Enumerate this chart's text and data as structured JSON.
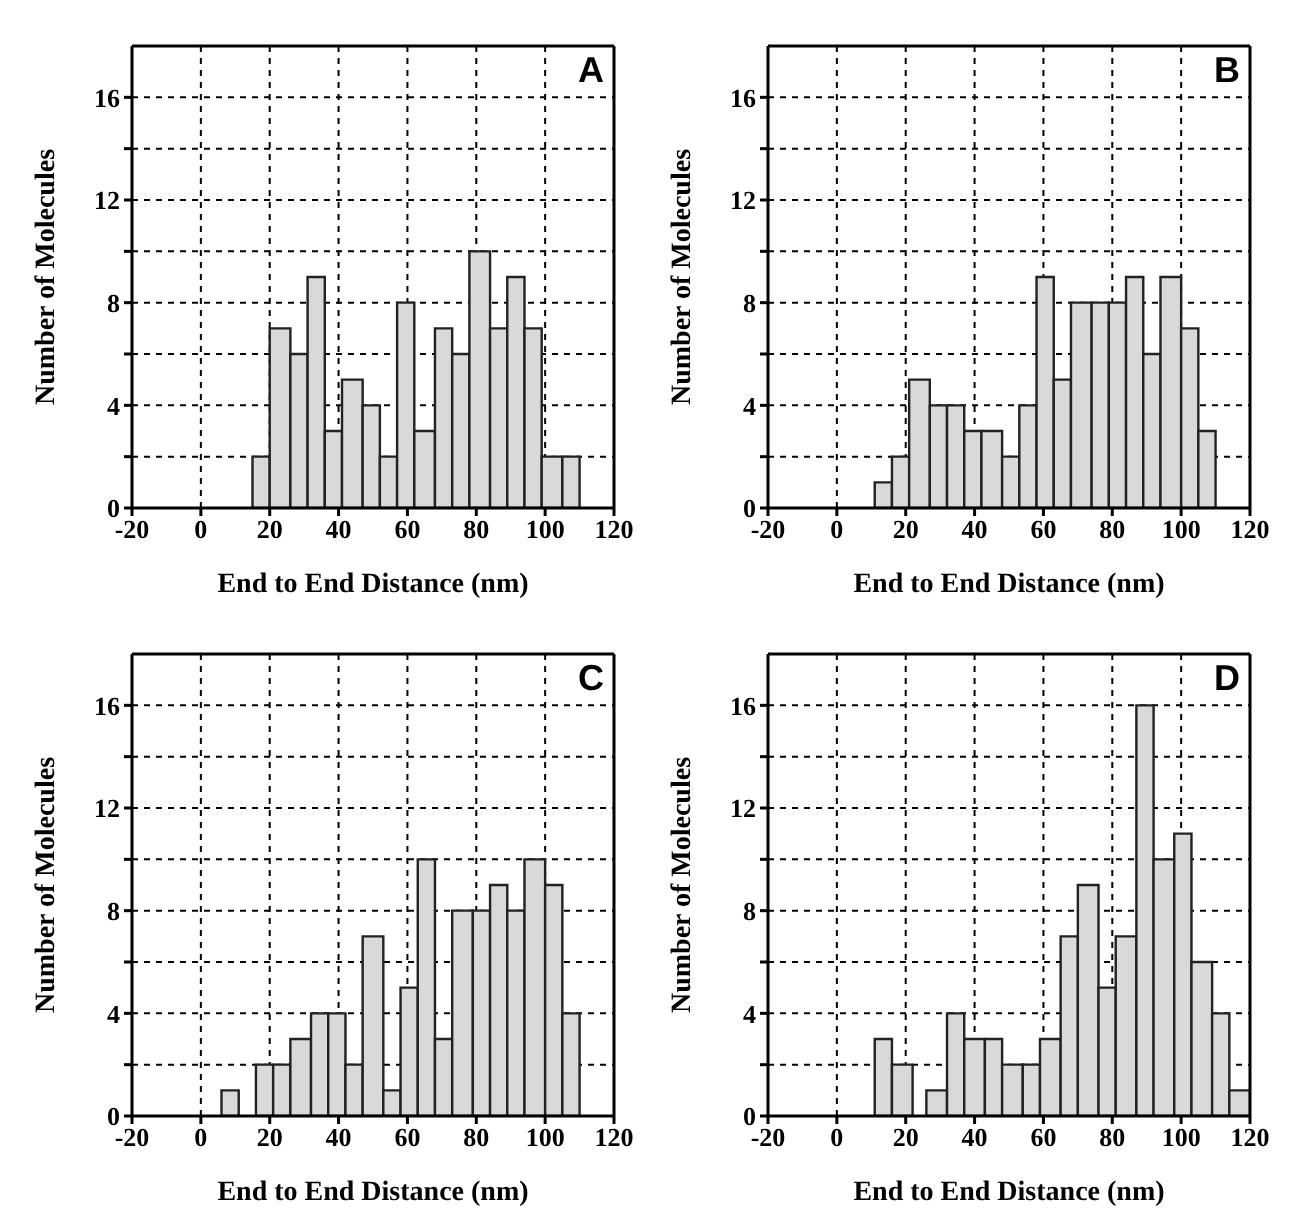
{
  "chart_data": [
    {
      "type": "histogram",
      "xlabel": "End to End Distance (nm)",
      "ylabel": "Number of Molecules",
      "annotations": [
        "A"
      ],
      "color": "#d9d9d9",
      "grid": true,
      "xlim": [
        -20,
        120
      ],
      "xticks": [
        -20,
        0,
        20,
        40,
        60,
        80,
        100,
        120
      ],
      "ylim": [
        0,
        18
      ],
      "yticks": [
        0,
        {
          "value": 2,
          "label": null
        },
        4,
        {
          "value": 6,
          "label": null
        },
        8,
        {
          "value": 10,
          "label": null
        },
        12,
        {
          "value": 14,
          "label": null
        },
        16
      ],
      "bins": [
        15,
        20,
        26,
        31,
        36,
        41,
        47,
        52,
        57,
        62,
        68,
        73,
        78,
        84,
        89,
        94,
        99,
        105,
        110
      ],
      "values": [
        2,
        7,
        6,
        9,
        3,
        5,
        4,
        2,
        8,
        3,
        7,
        6,
        10,
        7,
        9,
        7,
        2,
        2
      ]
    },
    {
      "type": "histogram",
      "xlabel": "End to End Distance (nm)",
      "ylabel": "Number of Molecules",
      "annotations": [
        "B"
      ],
      "color": "#d9d9d9",
      "grid": true,
      "xlim": [
        -20,
        120
      ],
      "xticks": [
        -20,
        0,
        20,
        40,
        60,
        80,
        100,
        120
      ],
      "ylim": [
        0,
        18
      ],
      "yticks": [
        0,
        {
          "value": 2,
          "label": null
        },
        4,
        {
          "value": 6,
          "label": null
        },
        8,
        {
          "value": 10,
          "label": null
        },
        12,
        {
          "value": 14,
          "label": null
        },
        16
      ],
      "bins": [
        11,
        16,
        21,
        27,
        32,
        37,
        42,
        48,
        53,
        58,
        63,
        68,
        74,
        79,
        84,
        89,
        94,
        100,
        105,
        110
      ],
      "values": [
        1,
        2,
        5,
        4,
        4,
        3,
        3,
        2,
        4,
        9,
        5,
        8,
        8,
        8,
        9,
        6,
        9,
        7,
        3
      ]
    },
    {
      "type": "histogram",
      "xlabel": "End to End Distance (nm)",
      "ylabel": "Number of Molecules",
      "annotations": [
        "C"
      ],
      "color": "#d9d9d9",
      "grid": true,
      "xlim": [
        -20,
        120
      ],
      "xticks": [
        -20,
        0,
        20,
        40,
        60,
        80,
        100,
        120
      ],
      "ylim": [
        0,
        18
      ],
      "yticks": [
        0,
        {
          "value": 2,
          "label": null
        },
        4,
        {
          "value": 6,
          "label": null
        },
        8,
        {
          "value": 10,
          "label": null
        },
        12,
        {
          "value": 14,
          "label": null
        },
        16
      ],
      "bins": [
        6,
        11,
        16,
        21,
        26,
        32,
        37,
        42,
        47,
        53,
        58,
        63,
        68,
        73,
        79,
        84,
        89,
        94,
        100,
        105,
        110
      ],
      "values": [
        1,
        0,
        2,
        2,
        3,
        4,
        4,
        2,
        7,
        1,
        5,
        10,
        3,
        8,
        8,
        9,
        8,
        10,
        9,
        4
      ]
    },
    {
      "type": "histogram",
      "xlabel": "End to End Distance (nm)",
      "ylabel": "Number of Molecules",
      "annotations": [
        "D"
      ],
      "color": "#d9d9d9",
      "grid": true,
      "xlim": [
        -20,
        120
      ],
      "xticks": [
        -20,
        0,
        20,
        40,
        60,
        80,
        100,
        120
      ],
      "ylim": [
        0,
        18
      ],
      "yticks": [
        0,
        {
          "value": 2,
          "label": null
        },
        4,
        {
          "value": 6,
          "label": null
        },
        8,
        {
          "value": 10,
          "label": null
        },
        12,
        {
          "value": 14,
          "label": null
        },
        16
      ],
      "bins": [
        11,
        16,
        22,
        26,
        32,
        37,
        43,
        48,
        54,
        59,
        65,
        70,
        76,
        81,
        87,
        92,
        98,
        103,
        109,
        114,
        120
      ],
      "values": [
        3,
        2,
        0,
        1,
        4,
        3,
        3,
        2,
        2,
        3,
        7,
        9,
        5,
        7,
        16,
        10,
        11,
        6,
        4,
        1
      ]
    }
  ]
}
